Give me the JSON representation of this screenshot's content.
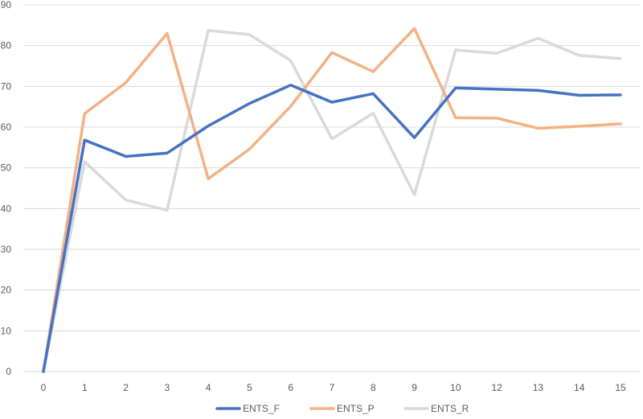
{
  "chart_data": {
    "type": "line",
    "title": "",
    "xlabel": "",
    "ylabel": "",
    "categories": [
      "0",
      "1",
      "2",
      "3",
      "4",
      "5",
      "6",
      "7",
      "8",
      "9",
      "10",
      "12",
      "13",
      "14",
      "15"
    ],
    "ylim": [
      0,
      90
    ],
    "yticks": [
      0,
      10,
      20,
      30,
      40,
      50,
      60,
      70,
      80,
      90
    ],
    "grid": true,
    "legend_position": "bottom",
    "series": [
      {
        "name": "ENTS_F",
        "color": "#4472c4",
        "values": [
          0,
          56.8,
          52.8,
          53.6,
          60.3,
          65.8,
          70.3,
          66.1,
          68.2,
          57.4,
          69.6,
          69.3,
          69.0,
          67.8,
          67.9
        ]
      },
      {
        "name": "ENTS_P",
        "color": "#f4b183",
        "values": [
          0,
          63.3,
          70.9,
          83.0,
          47.3,
          54.6,
          65.1,
          78.3,
          73.6,
          84.2,
          62.3,
          62.2,
          59.7,
          60.2,
          60.8
        ]
      },
      {
        "name": "ENTS_R",
        "color": "#d9d9d9",
        "values": [
          0,
          51.5,
          42.1,
          39.6,
          83.7,
          82.7,
          76.3,
          57.1,
          63.4,
          43.4,
          78.9,
          78.1,
          81.8,
          77.6,
          76.8
        ]
      }
    ]
  }
}
